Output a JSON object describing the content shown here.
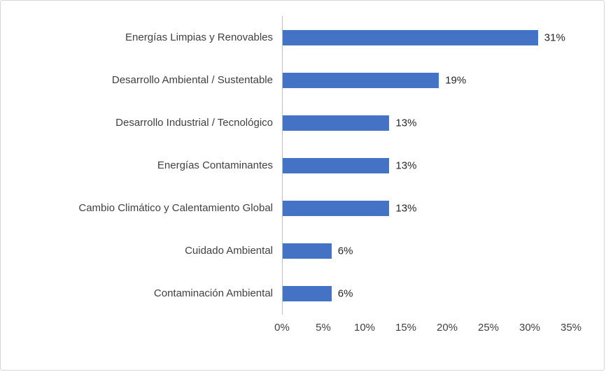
{
  "chart_data": {
    "type": "bar",
    "orientation": "horizontal",
    "title": "",
    "xlabel": "",
    "ylabel": "",
    "categories": [
      "Energías Limpias y Renovables",
      "Desarrollo Ambiental / Sustentable",
      "Desarrollo Industrial / Tecnológico",
      "Energías Contaminantes",
      "Cambio Climático y Calentamiento Global",
      "Cuidado Ambiental",
      "Contaminación Ambiental"
    ],
    "values": [
      31,
      19,
      13,
      13,
      13,
      6,
      6
    ],
    "value_labels": [
      "31%",
      "19%",
      "13%",
      "13%",
      "13%",
      "6%",
      "6%"
    ],
    "x_tick_values": [
      0,
      5,
      10,
      15,
      20,
      25,
      30,
      35
    ],
    "x_tick_labels": [
      "0%",
      "5%",
      "10%",
      "15%",
      "20%",
      "25%",
      "30%",
      "35%"
    ],
    "xlim": [
      0,
      35
    ],
    "grid": false,
    "legend": "none",
    "colors": {
      "bar": "#4472C4",
      "axis_line": "#BFBFBF",
      "text": "#404040",
      "frame_border": "#D6D6D6",
      "background": "#FFFFFF"
    }
  }
}
